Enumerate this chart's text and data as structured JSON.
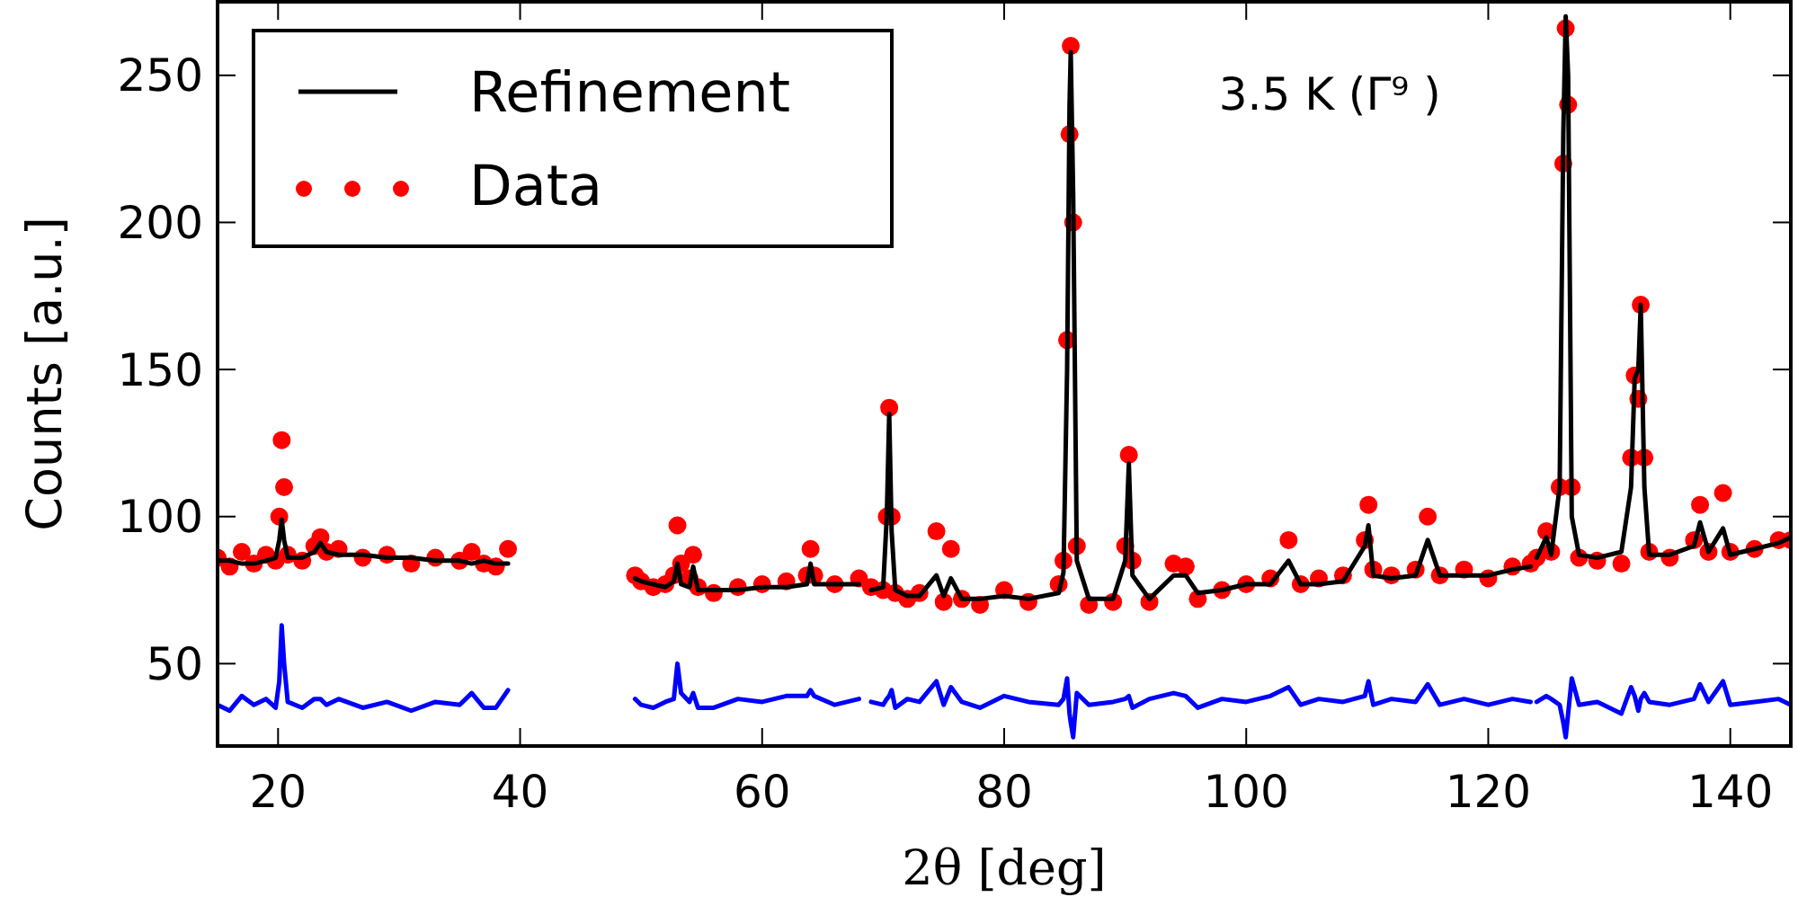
{
  "chart_data": {
    "type": "scatter",
    "xlabel": "2θ [deg]",
    "ylabel": "Counts [a.u.]",
    "annotations": [
      "3.5 K (Γ⁹ )"
    ],
    "xlim": [
      15,
      145
    ],
    "xticks": [
      20,
      40,
      60,
      80,
      100,
      120,
      140
    ],
    "ylim": [
      22,
      275
    ],
    "yticks": [
      50,
      100,
      150,
      200,
      250
    ],
    "grid": false,
    "legend": "top left",
    "x": [
      15,
      16,
      17,
      18,
      19,
      19.8,
      20.1,
      20.3,
      20.5,
      20.8,
      22,
      23,
      23.5,
      24,
      25,
      27,
      29,
      31,
      33,
      35,
      36,
      37,
      38,
      39,
      44,
      49.5,
      50,
      51,
      52,
      52.7,
      53,
      53.3,
      54,
      54.3,
      54.7,
      56,
      58,
      60,
      62,
      63.7,
      64,
      64.3,
      66,
      68,
      68.5,
      69,
      70,
      70.3,
      70.5,
      70.7,
      71,
      72,
      73,
      74.4,
      75,
      75.6,
      76.5,
      78,
      80,
      82,
      84.5,
      84.9,
      85.2,
      85.4,
      85.5,
      85.7,
      86,
      87,
      89,
      90,
      90.3,
      90.6,
      92,
      94,
      95,
      96,
      98,
      100,
      102,
      103.5,
      104.5,
      106,
      108,
      109.8,
      110.1,
      110.5,
      112,
      114,
      115,
      116,
      118,
      120,
      122,
      123.5,
      123.8,
      124,
      124.8,
      125.2,
      125.9,
      126.2,
      126.4,
      126.6,
      126.9,
      127.5,
      129,
      131,
      131.8,
      132.1,
      132.4,
      132.6,
      132.9,
      133.3,
      135,
      137,
      137.5,
      138.2,
      139.4,
      140,
      142,
      144,
      145
    ],
    "series": [
      {
        "name": "Refinement",
        "type": "line",
        "color": "#000000",
        "line_style": "solid",
        "values": [
          85,
          85,
          84,
          84,
          85,
          86,
          92,
          99,
          92,
          86,
          86,
          88,
          91,
          88,
          87,
          87,
          86,
          86,
          85,
          85,
          84,
          85,
          84,
          84,
          null,
          79,
          78,
          77,
          76,
          78,
          84,
          77,
          76,
          83,
          75,
          75,
          75,
          76,
          76,
          77,
          84,
          77,
          77,
          77,
          null,
          75,
          76,
          100,
          135,
          95,
          75,
          73,
          73,
          80,
          73,
          79,
          72,
          72,
          73,
          72,
          74,
          81,
          150,
          240,
          258,
          210,
          85,
          72,
          72,
          85,
          118,
          80,
          72,
          80,
          80,
          74,
          75,
          77,
          77,
          85,
          77,
          77,
          78,
          90,
          97,
          80,
          79,
          80,
          92,
          80,
          80,
          80,
          82,
          83,
          null,
          86,
          93,
          87,
          110,
          230,
          270,
          250,
          100,
          87,
          86,
          88,
          110,
          147,
          150,
          172,
          110,
          87,
          87,
          90,
          98,
          88,
          96,
          87,
          89,
          91,
          93
        ]
      },
      {
        "name": "Data",
        "color": "#ff0000",
        "marker": "circle",
        "values": [
          86,
          83,
          88,
          84,
          87,
          85,
          100,
          126,
          110,
          87,
          85,
          90,
          93,
          88,
          89,
          86,
          87,
          84,
          86,
          85,
          88,
          84,
          83,
          89,
          null,
          80,
          78,
          76,
          77,
          80,
          97,
          84,
          79,
          87,
          76,
          74,
          76,
          77,
          78,
          80,
          89,
          80,
          77,
          79,
          null,
          76,
          75,
          100,
          137,
          100,
          74,
          72,
          74,
          95,
          71,
          89,
          72,
          70,
          75,
          71,
          77,
          85,
          160,
          230,
          260,
          200,
          90,
          70,
          71,
          90,
          121,
          85,
          71,
          84,
          83,
          72,
          75,
          77,
          79,
          92,
          77,
          79,
          80,
          92,
          104,
          82,
          80,
          82,
          100,
          80,
          82,
          79,
          83,
          84,
          null,
          86,
          95,
          88,
          110,
          220,
          266,
          240,
          110,
          86,
          85,
          84,
          120,
          148,
          140,
          172,
          120,
          88,
          86,
          92,
          104,
          88,
          108,
          88,
          89,
          92,
          92
        ]
      },
      {
        "type": "line",
        "color": "#0000ff",
        "line_style": "solid",
        "values": [
          36,
          34,
          39,
          36,
          38,
          35,
          44,
          63,
          50,
          37,
          35,
          38,
          38,
          36,
          38,
          35,
          37,
          34,
          37,
          36,
          40,
          35,
          35,
          41,
          null,
          38,
          36,
          35,
          37,
          38,
          50,
          40,
          37,
          40,
          35,
          35,
          38,
          37,
          39,
          39,
          41,
          39,
          36,
          38,
          null,
          37,
          36,
          38,
          39,
          41,
          35,
          38,
          37,
          44,
          36,
          42,
          37,
          35,
          39,
          37,
          36,
          38,
          45,
          33,
          30,
          25,
          40,
          36,
          37,
          38,
          39,
          35,
          38,
          40,
          39,
          35,
          38,
          37,
          39,
          42,
          36,
          38,
          37,
          39,
          44,
          36,
          38,
          37,
          43,
          36,
          38,
          36,
          38,
          37,
          null,
          37,
          39,
          38,
          36,
          30,
          25,
          33,
          45,
          36,
          37,
          33,
          42,
          39,
          34,
          38,
          40,
          37,
          36,
          38,
          43,
          37,
          44,
          36,
          37,
          38,
          36
        ]
      }
    ]
  }
}
